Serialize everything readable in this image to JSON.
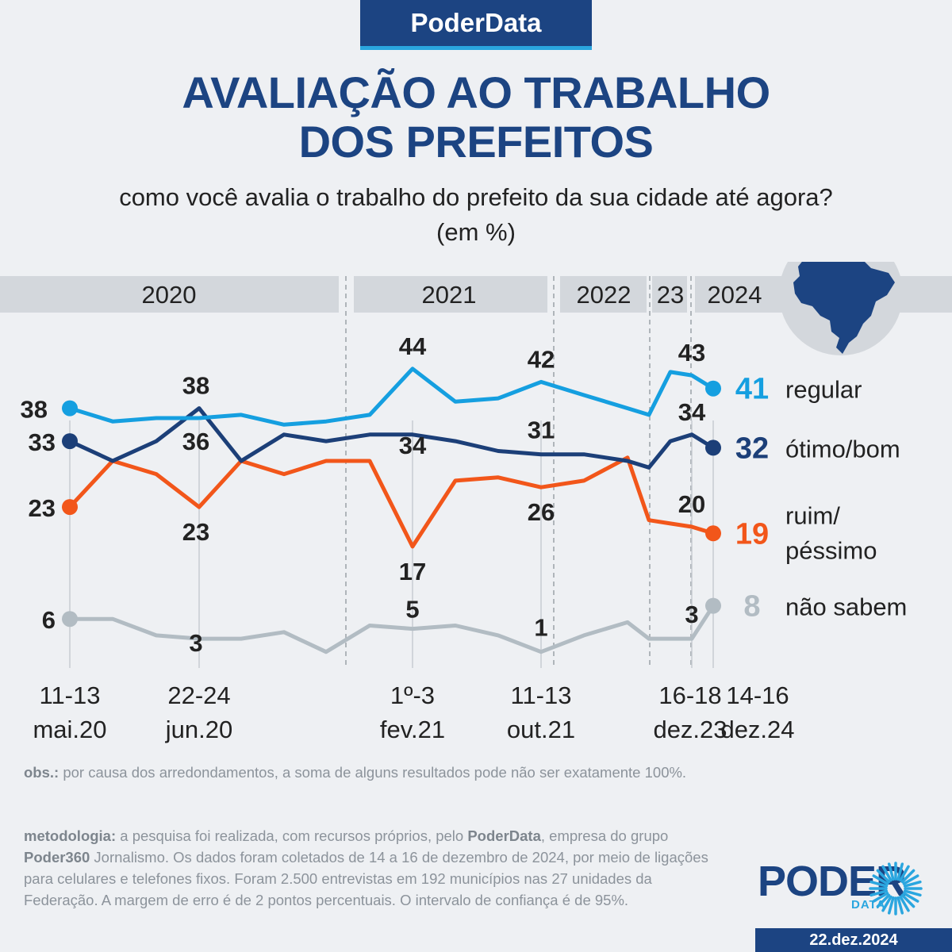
{
  "header": {
    "brand": "PoderData",
    "title_line1": "AVALIAÇÃO AO TRABALHO",
    "title_line2": "DOS PREFEITOS",
    "subtitle": "como você avalia o trabalho do prefeito da sua cidade até agora?",
    "unit": "(em %)"
  },
  "colors": {
    "regular": "#159fe0",
    "otimo_bom": "#1c3f78",
    "ruim_pessimo": "#f2561a",
    "nao_sabem": "#b2bcc3",
    "brand": "#1c4482",
    "band": "#d3d7dc"
  },
  "chart_data": {
    "type": "line",
    "years": [
      "2020",
      "2021",
      "2022",
      "23",
      "2024"
    ],
    "x_labels": [
      {
        "line1": "11-13",
        "line2": "mai.20"
      },
      {
        "line1": "22-24",
        "line2": "jun.20"
      },
      {
        "line1": "1º-3",
        "line2": "fev.21"
      },
      {
        "line1": "11-13",
        "line2": "out.21"
      },
      {
        "line1": "16-18",
        "line2": "dez.23"
      },
      {
        "line1": "14-16",
        "line2": "dez.24"
      }
    ],
    "series": [
      {
        "key": "regular",
        "name": "regular",
        "final_value": "41",
        "values": [
          38,
          36,
          36.5,
          36.5,
          37,
          35.5,
          36,
          37,
          44,
          39,
          39.5,
          42,
          40,
          38,
          37,
          43.5,
          43,
          41
        ],
        "labels": [
          {
            "i": 0,
            "text": "38"
          },
          {
            "i": 3,
            "text": "36"
          },
          {
            "i": 8,
            "text": "44"
          },
          {
            "i": 11,
            "text": "42"
          },
          {
            "i": 16,
            "text": "43"
          }
        ]
      },
      {
        "key": "otimo_bom",
        "name": "ótimo/bom",
        "final_value": "32",
        "values": [
          33,
          30,
          33,
          38,
          30,
          34,
          33,
          34,
          34,
          33,
          31.5,
          31,
          31,
          30,
          29,
          33,
          34,
          32
        ],
        "labels": [
          {
            "i": 0,
            "text": "33"
          },
          {
            "i": 3,
            "text": "38"
          },
          {
            "i": 8,
            "text": "34"
          },
          {
            "i": 11,
            "text": "31"
          },
          {
            "i": 16,
            "text": "34"
          }
        ]
      },
      {
        "key": "ruim_pessimo",
        "name": "ruim/péssimo",
        "final_value": "19",
        "values": [
          23,
          30,
          28,
          23,
          30,
          28,
          30,
          30,
          17,
          27,
          27.5,
          26,
          27,
          30.5,
          21,
          20.5,
          20,
          19
        ],
        "labels": [
          {
            "i": 0,
            "text": "23"
          },
          {
            "i": 3,
            "text": "23"
          },
          {
            "i": 8,
            "text": "17"
          },
          {
            "i": 11,
            "text": "26"
          },
          {
            "i": 16,
            "text": "20"
          }
        ]
      },
      {
        "key": "nao_sabem",
        "name": "não sabem",
        "final_value": "8",
        "values": [
          6,
          6,
          3.5,
          3,
          3,
          4,
          1,
          5,
          4.5,
          5,
          3.5,
          1,
          3.5,
          5.5,
          3,
          3,
          3,
          8
        ],
        "labels": [
          {
            "i": 0,
            "text": "6"
          },
          {
            "i": 3,
            "text": "3"
          },
          {
            "i": 8,
            "text": "5"
          },
          {
            "i": 11,
            "text": "1"
          },
          {
            "i": 16,
            "text": "3"
          }
        ]
      }
    ],
    "legend": {
      "regular": "regular",
      "otimo_bom": "ótimo/bom",
      "ruim_line1": "ruim/",
      "ruim_line2": "péssimo",
      "nao_sabem": "não sabem"
    }
  },
  "footer": {
    "obs_label": "obs.:",
    "obs_text": " por causa dos arredondamentos, a soma de alguns resultados pode não ser exatamente 100%.",
    "method_label": "metodologia:",
    "method_text_1": " a pesquisa foi realizada, com recursos próprios, pelo ",
    "method_brand": "PoderData",
    "method_text_2": ", empresa do grupo ",
    "method_group": "Poder360",
    "method_text_3": " Jornalismo. Os dados foram coletados de 14 a 16 de dezembro de 2024, por meio de ligações para celulares e telefones fixos. Foram 2.500 entrevistas em 192 municípios nas 27 unidades da Federação. A margem de erro é de 2 pontos percentuais. O intervalo de confiança é de 95%.",
    "logo_word": "PODER",
    "logo_sub": "DATA",
    "date": "22.dez.2024"
  }
}
